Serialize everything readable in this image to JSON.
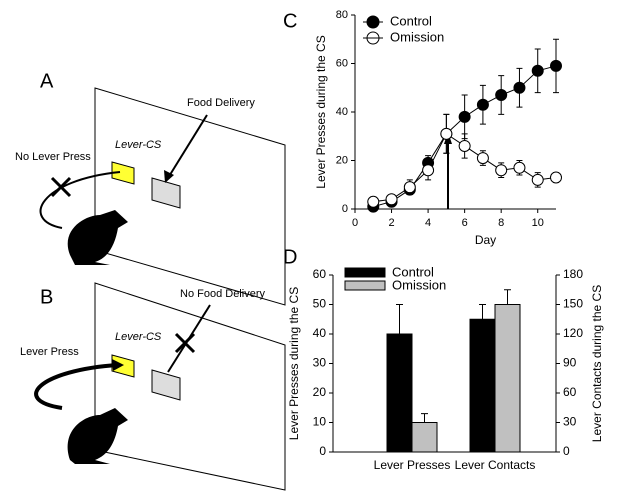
{
  "diagrams": [
    {
      "label": "A",
      "lever": "Lever-CS",
      "response": "No Lever Press",
      "outcome": "Food Delivery"
    },
    {
      "label": "B",
      "lever": "Lever-CS",
      "response": "Lever Press",
      "outcome": "No Food Delivery"
    }
  ],
  "chart_data": [
    {
      "label": "C",
      "type": "line",
      "x_label": "Day",
      "y_label": "Lever Presses during the CS",
      "x": [
        1,
        2,
        3,
        4,
        5,
        6,
        7,
        8,
        9,
        10,
        11
      ],
      "xlim": [
        0,
        11
      ],
      "xticks": [
        0,
        2,
        4,
        6,
        8,
        10
      ],
      "ylim": [
        0,
        80
      ],
      "yticks": [
        0,
        20,
        40,
        60,
        80
      ],
      "series": [
        {
          "name": "Control",
          "color": "#000000",
          "values": [
            1,
            3,
            8,
            19,
            31,
            38,
            43,
            47,
            50,
            57,
            59
          ],
          "errors": [
            2,
            2,
            2,
            3,
            8,
            9,
            8,
            8,
            8,
            9,
            11
          ]
        },
        {
          "name": "Omission",
          "color": "#ffffff",
          "values": [
            3,
            4,
            9,
            16,
            31,
            26,
            21,
            16,
            17,
            12,
            13
          ],
          "errors": [
            2,
            2,
            3,
            4,
            8,
            5,
            3,
            3,
            3,
            3,
            2
          ]
        }
      ]
    },
    {
      "label": "D",
      "type": "bar",
      "categories": [
        "Lever Presses",
        "Lever Contacts"
      ],
      "category_axis": [
        "y",
        "y2"
      ],
      "y_label": "Lever Presses during the CS",
      "y2_label": "Lever Contacts during the CS",
      "ylim": [
        0,
        60
      ],
      "yticks": [
        0,
        10,
        20,
        30,
        40,
        50,
        60
      ],
      "y2lim": [
        0,
        180
      ],
      "y2ticks": [
        0,
        30,
        60,
        90,
        120,
        150,
        180
      ],
      "series": [
        {
          "name": "Control",
          "color": "#000000",
          "values": [
            40,
            135
          ],
          "errors": [
            10,
            15
          ]
        },
        {
          "name": "Omission",
          "color": "#c0c0c0",
          "values": [
            10,
            150
          ],
          "errors": [
            3,
            15
          ]
        }
      ]
    }
  ]
}
